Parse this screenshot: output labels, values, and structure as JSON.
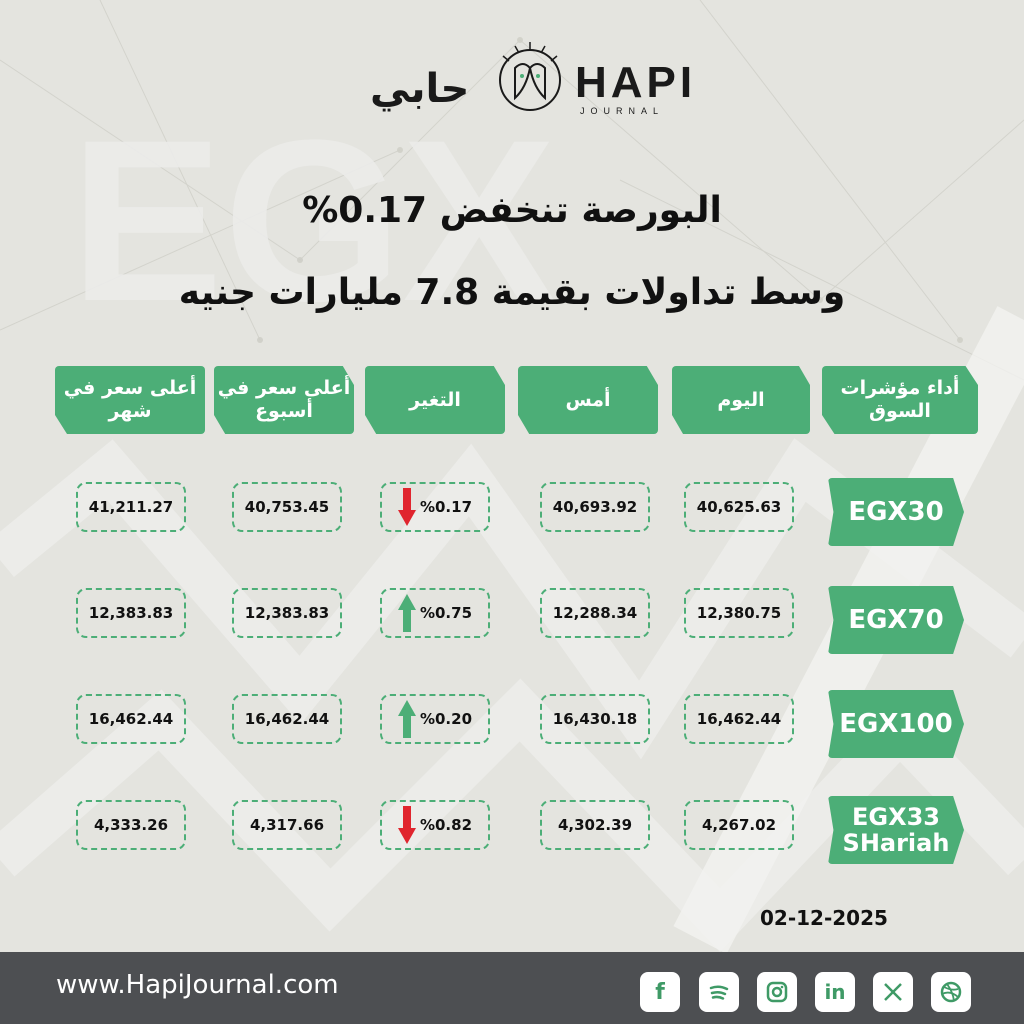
{
  "brand": {
    "arabic_name": "حابي",
    "english_name": "HAPI",
    "english_sub": "JOURNAL"
  },
  "headline": {
    "line1": "البورصة تنخفض 0.17%",
    "line2": "وسط تداولات بقيمة 7.8 مليارات جنيه"
  },
  "table": {
    "headers": {
      "indicator": "أداء مؤشرات السوق",
      "today": "اليوم",
      "yesterday": "أمس",
      "change": "التغير",
      "week_high": "أعلى سعر في أسبوع",
      "month_high": "أعلى سعر في شهر"
    },
    "rows": [
      {
        "index": "EGX30",
        "today": "40,625.63",
        "yesterday": "40,693.92",
        "change": "%0.17",
        "direction": "down",
        "week_high": "40,753.45",
        "month_high": "41,211.27"
      },
      {
        "index": "EGX70",
        "today": "12,380.75",
        "yesterday": "12,288.34",
        "change": "%0.75",
        "direction": "up",
        "week_high": "12,383.83",
        "month_high": "12,383.83"
      },
      {
        "index": "EGX100",
        "today": "16,462.44",
        "yesterday": "16,430.18",
        "change": "%0.20",
        "direction": "up",
        "week_high": "16,462.44",
        "month_high": "16,462.44"
      },
      {
        "index": "EGX33 SHariah",
        "today": "4,267.02",
        "yesterday": "4,302.39",
        "change": "%0.82",
        "direction": "down",
        "week_high": "4,317.66",
        "month_high": "4,333.26"
      }
    ]
  },
  "date": "02-12-2025",
  "footer": {
    "url": "www.HapiJournal.com",
    "social_icons": [
      "facebook-icon",
      "spotify-icon",
      "instagram-icon",
      "linkedin-icon",
      "x-icon",
      "dribbble-icon"
    ]
  },
  "colors": {
    "accent_green": "#4cae77",
    "down_red": "#e0252e",
    "up_green": "#4cae77",
    "footer_gray": "#4d4f52"
  }
}
